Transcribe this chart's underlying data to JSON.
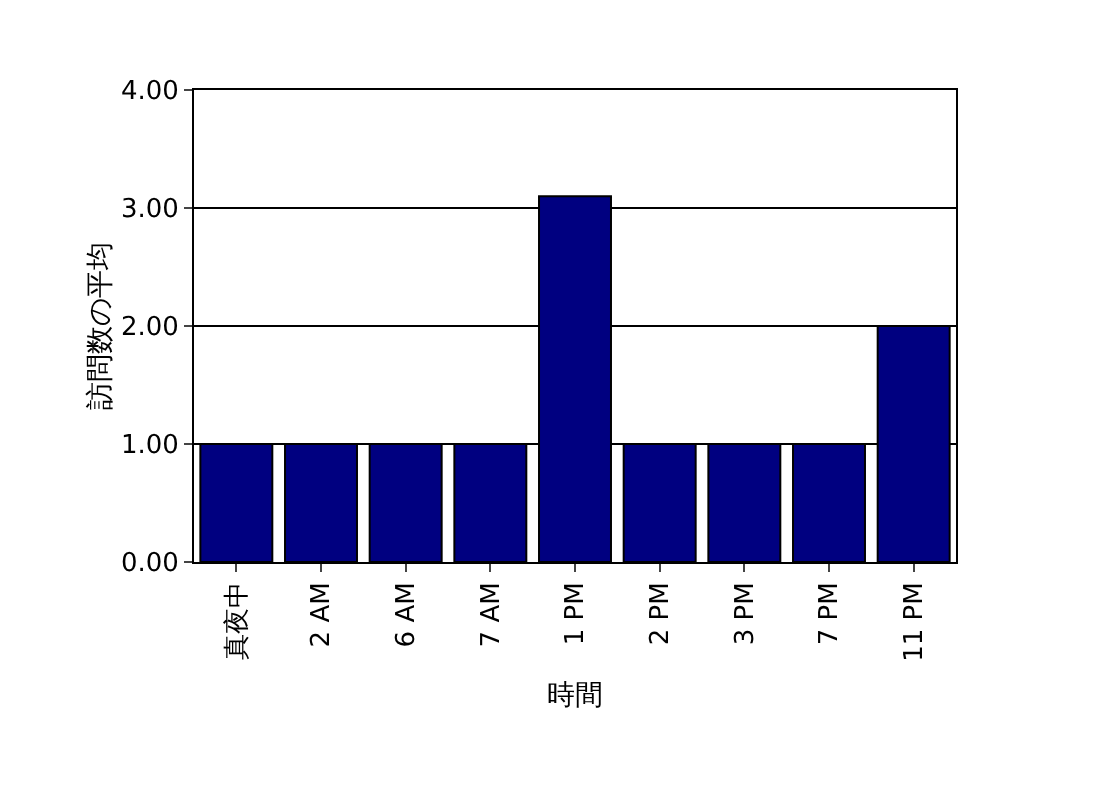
{
  "chart_data": {
    "type": "bar",
    "xlabel": "時間",
    "ylabel": "訪問数の平均",
    "categories": [
      "真夜中",
      "2 AM",
      "6 AM",
      "7 AM",
      "1 PM",
      "2 PM",
      "3 PM",
      "7 PM",
      "11 PM"
    ],
    "values": [
      1,
      1,
      1,
      1,
      3.1,
      1,
      1,
      1,
      2
    ],
    "color": "#000080",
    "ylim": [
      0,
      4
    ],
    "yticks": [
      {
        "value": 0,
        "label": "0.00"
      },
      {
        "value": 1,
        "label": "1.00"
      },
      {
        "value": 2,
        "label": "2.00"
      },
      {
        "value": 3,
        "label": "3.00"
      },
      {
        "value": 4,
        "label": "4.00"
      }
    ],
    "grid": "y"
  }
}
